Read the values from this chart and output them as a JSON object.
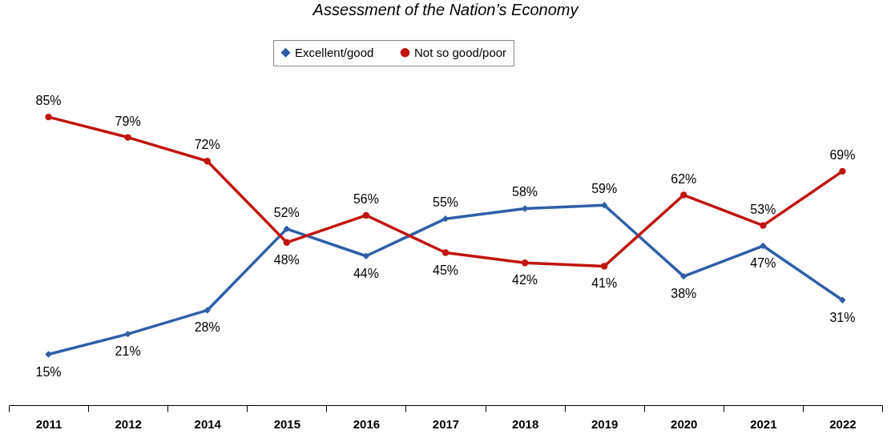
{
  "chart_data": {
    "type": "line",
    "title": "Assessment of the Nation’s Economy",
    "categories": [
      "2011",
      "2012",
      "2014",
      "2015",
      "2016",
      "2017",
      "2018",
      "2019",
      "2020",
      "2021",
      "2022"
    ],
    "series": [
      {
        "name": "Excellent/good",
        "color": "#2e5fa8",
        "marker": "diamond",
        "line_style": "solid",
        "values": [
          15,
          21,
          28,
          52,
          44,
          55,
          58,
          59,
          38,
          47,
          31
        ],
        "value_labels": [
          "15%",
          "21%",
          "28%",
          "52%",
          "44%",
          "55%",
          "58%",
          "59%",
          "38%",
          "47%",
          "31%"
        ]
      },
      {
        "name": "Not so good/poor",
        "color": "#c0150f",
        "marker": "circle",
        "line_style": "solid",
        "values": [
          85,
          79,
          72,
          48,
          56,
          45,
          42,
          41,
          62,
          53,
          69
        ],
        "value_labels": [
          "85%",
          "79%",
          "72%",
          "48%",
          "56%",
          "45%",
          "42%",
          "41%",
          "62%",
          "53%",
          "69%"
        ]
      }
    ],
    "legend": "top",
    "grid": false
  }
}
